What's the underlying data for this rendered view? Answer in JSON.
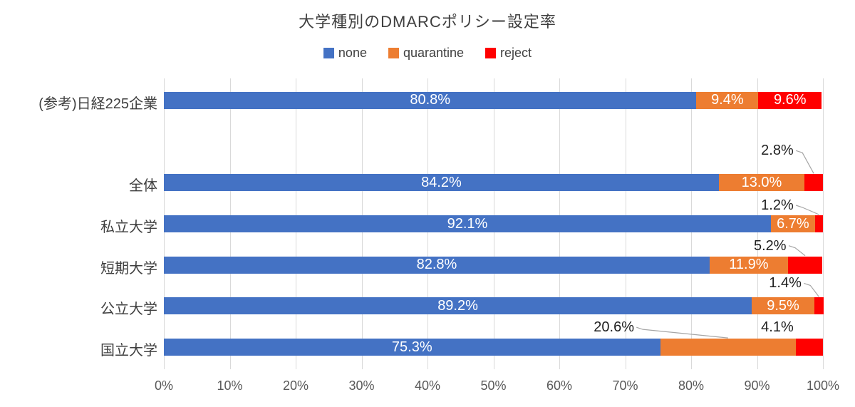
{
  "chart_data": {
    "type": "bar",
    "orientation": "horizontal",
    "stacked": true,
    "title": "大学種別のDMARCポリシー設定率",
    "legend_position": "top",
    "grid": true,
    "xlim": [
      0,
      100
    ],
    "x_ticks": [
      "0%",
      "10%",
      "20%",
      "30%",
      "40%",
      "50%",
      "60%",
      "70%",
      "80%",
      "90%",
      "100%"
    ],
    "categories": [
      "(参考)日経225企業",
      "",
      "全体",
      "私立大学",
      "短期大学",
      "公立大学",
      "国立大学"
    ],
    "series": [
      {
        "name": "none",
        "color": "#4472C4",
        "values": [
          80.8,
          null,
          84.2,
          92.1,
          82.8,
          89.2,
          75.3
        ]
      },
      {
        "name": "quarantine",
        "color": "#ED7D31",
        "values": [
          9.4,
          null,
          13.0,
          6.7,
          11.9,
          9.5,
          20.6
        ]
      },
      {
        "name": "reject",
        "color": "#FF0000",
        "values": [
          9.6,
          null,
          2.8,
          1.2,
          5.2,
          1.4,
          4.1
        ]
      }
    ],
    "value_label_format": "one-decimal-percent",
    "inside_label_color": "#FFFFFF",
    "outside_label_color": "#1F1F1F",
    "gridline_color": "#D9D9D9",
    "leader_color": "#A6A6A6",
    "callouts": [
      {
        "row": 2,
        "series": 2,
        "label": "2.8%",
        "label_x_pct": 93.1,
        "gap": 22,
        "leader": true
      },
      {
        "row": 3,
        "series": 2,
        "label": "1.2%",
        "label_x_pct": 93.1,
        "gap": 3,
        "leader": true
      },
      {
        "row": 4,
        "series": 2,
        "label": "5.2%",
        "label_x_pct": 92.0,
        "gap": 4,
        "leader": true
      },
      {
        "row": 5,
        "series": 2,
        "label": "1.4%",
        "label_x_pct": 94.3,
        "gap": 9,
        "leader": true
      },
      {
        "row": 6,
        "series": 1,
        "label": "20.6%",
        "label_x_pct": 68.3,
        "gap": 5,
        "leader": true,
        "leader_end_x_pct": 85.6
      },
      {
        "row": 6,
        "series": 2,
        "label": "4.1%",
        "label_x_pct": 93.1,
        "gap": 5,
        "leader": false
      }
    ]
  }
}
